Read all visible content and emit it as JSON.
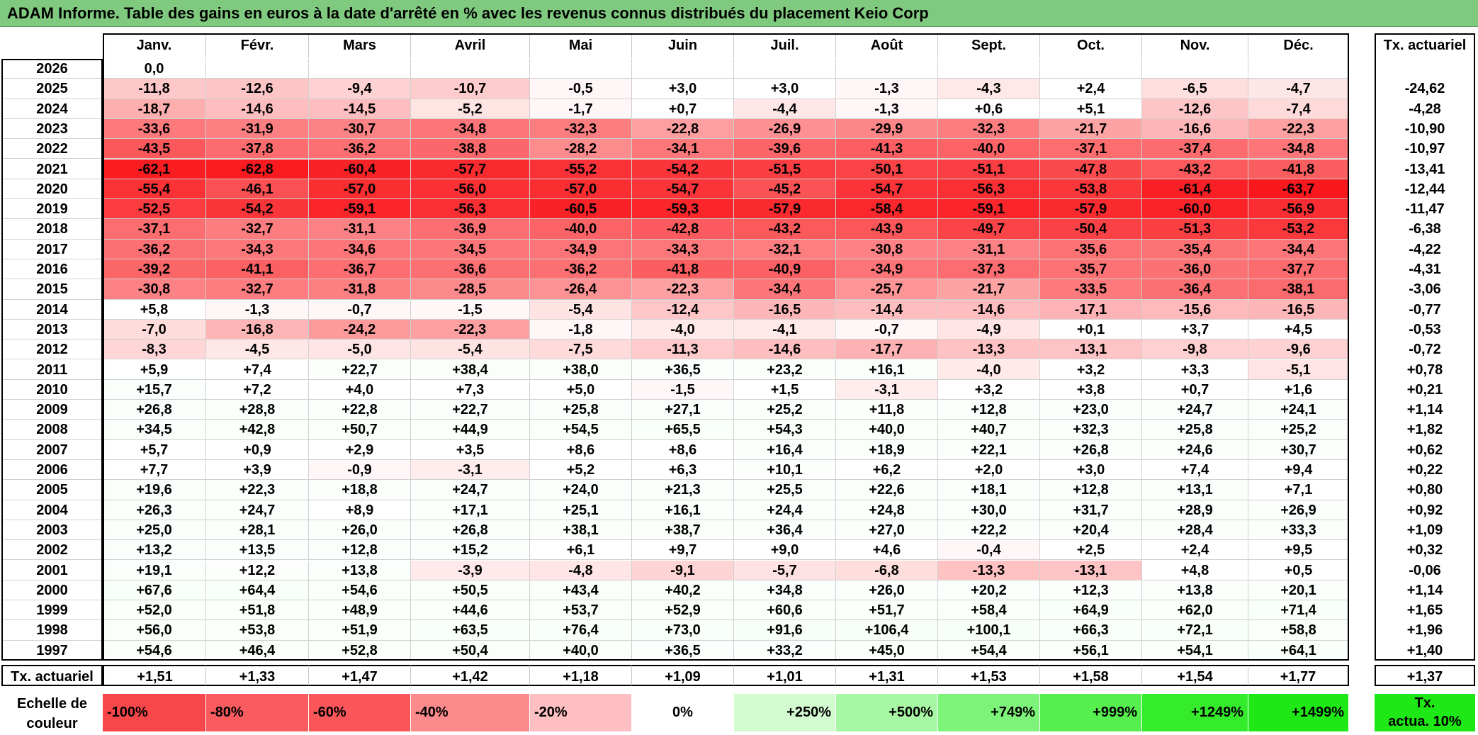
{
  "title": "ADAM Informe. Table des gains en euros à la date d'arrêté en % avec les revenus connus distribués du placement Keio Corp",
  "chart_data": {
    "type": "heatmap",
    "title": "ADAM Informe. Table des gains en euros à la date d'arrêté en % avec les revenus connus distribués du placement Keio Corp",
    "months": [
      "Janv.",
      "Févr.",
      "Mars",
      "Avril",
      "Mai",
      "Juin",
      "Juil.",
      "Août",
      "Sept.",
      "Oct.",
      "Nov.",
      "Déc."
    ],
    "rate_header": "Tx. actuariel",
    "years": [
      "2026",
      "2025",
      "2024",
      "2023",
      "2022",
      "2021",
      "2020",
      "2019",
      "2018",
      "2017",
      "2016",
      "2015",
      "2014",
      "2013",
      "2012",
      "2011",
      "2010",
      "2009",
      "2008",
      "2007",
      "2006",
      "2005",
      "2004",
      "2003",
      "2002",
      "2001",
      "2000",
      "1999",
      "1998",
      "1997"
    ],
    "values": [
      [
        "0,0",
        "",
        "",
        "",
        "",
        "",
        "",
        "",
        "",
        "",
        "",
        ""
      ],
      [
        "-11,8",
        "-12,6",
        "-9,4",
        "-10,7",
        "-0,5",
        "+3,0",
        "+3,0",
        "-1,3",
        "-4,3",
        "+2,4",
        "-6,5",
        "-4,7"
      ],
      [
        "-18,7",
        "-14,6",
        "-14,5",
        "-5,2",
        "-1,7",
        "+0,7",
        "-4,4",
        "-1,3",
        "+0,6",
        "+5,1",
        "-12,6",
        "-7,4"
      ],
      [
        "-33,6",
        "-31,9",
        "-30,7",
        "-34,8",
        "-32,3",
        "-22,8",
        "-26,9",
        "-29,9",
        "-32,3",
        "-21,7",
        "-16,6",
        "-22,3"
      ],
      [
        "-43,5",
        "-37,8",
        "-36,2",
        "-38,8",
        "-28,2",
        "-34,1",
        "-39,6",
        "-41,3",
        "-40,0",
        "-37,1",
        "-37,4",
        "-34,8"
      ],
      [
        "-62,1",
        "-62,8",
        "-60,4",
        "-57,7",
        "-55,2",
        "-54,2",
        "-51,5",
        "-50,1",
        "-51,1",
        "-47,8",
        "-43,2",
        "-41,8"
      ],
      [
        "-55,4",
        "-46,1",
        "-57,0",
        "-56,0",
        "-57,0",
        "-54,7",
        "-45,2",
        "-54,7",
        "-56,3",
        "-53,8",
        "-61,4",
        "-63,7"
      ],
      [
        "-52,5",
        "-54,2",
        "-59,1",
        "-56,3",
        "-60,5",
        "-59,3",
        "-57,9",
        "-58,4",
        "-59,1",
        "-57,9",
        "-60,0",
        "-56,9"
      ],
      [
        "-37,1",
        "-32,7",
        "-31,1",
        "-36,9",
        "-40,0",
        "-42,8",
        "-43,2",
        "-43,9",
        "-49,7",
        "-50,4",
        "-51,3",
        "-53,2"
      ],
      [
        "-36,2",
        "-34,3",
        "-34,6",
        "-34,5",
        "-34,9",
        "-34,3",
        "-32,1",
        "-30,8",
        "-31,1",
        "-35,6",
        "-35,4",
        "-34,4"
      ],
      [
        "-39,2",
        "-41,1",
        "-36,7",
        "-36,6",
        "-36,2",
        "-41,8",
        "-40,9",
        "-34,9",
        "-37,3",
        "-35,7",
        "-36,0",
        "-37,7"
      ],
      [
        "-30,8",
        "-32,7",
        "-31,8",
        "-28,5",
        "-26,4",
        "-22,3",
        "-34,4",
        "-25,7",
        "-21,7",
        "-33,5",
        "-36,4",
        "-38,1"
      ],
      [
        "+5,8",
        "-1,3",
        "-0,7",
        "-1,5",
        "-5,4",
        "-12,4",
        "-16,5",
        "-14,4",
        "-14,6",
        "-17,1",
        "-15,6",
        "-16,5"
      ],
      [
        "-7,0",
        "-16,8",
        "-24,2",
        "-22,3",
        "-1,8",
        "-4,0",
        "-4,1",
        "-0,7",
        "-4,9",
        "+0,1",
        "+3,7",
        "+4,5"
      ],
      [
        "-8,3",
        "-4,5",
        "-5,0",
        "-5,4",
        "-7,5",
        "-11,3",
        "-14,6",
        "-17,7",
        "-13,3",
        "-13,1",
        "-9,8",
        "-9,6"
      ],
      [
        "+5,9",
        "+7,4",
        "+22,7",
        "+38,4",
        "+38,0",
        "+36,5",
        "+23,2",
        "+16,1",
        "-4,0",
        "+3,2",
        "+3,3",
        "-5,1"
      ],
      [
        "+15,7",
        "+7,2",
        "+4,0",
        "+7,3",
        "+5,0",
        "-1,5",
        "+1,5",
        "-3,1",
        "+3,2",
        "+3,8",
        "+0,7",
        "+1,6"
      ],
      [
        "+26,8",
        "+28,8",
        "+22,8",
        "+22,7",
        "+25,8",
        "+27,1",
        "+25,2",
        "+11,8",
        "+12,8",
        "+23,0",
        "+24,7",
        "+24,1"
      ],
      [
        "+34,5",
        "+42,8",
        "+50,7",
        "+44,9",
        "+54,5",
        "+65,5",
        "+54,3",
        "+40,0",
        "+40,7",
        "+32,3",
        "+25,8",
        "+25,2"
      ],
      [
        "+5,7",
        "+0,9",
        "+2,9",
        "+3,5",
        "+8,6",
        "+8,6",
        "+16,4",
        "+18,9",
        "+22,1",
        "+26,8",
        "+24,6",
        "+30,7"
      ],
      [
        "+7,7",
        "+3,9",
        "-0,9",
        "-3,1",
        "+5,2",
        "+6,3",
        "+10,1",
        "+6,2",
        "+2,0",
        "+3,0",
        "+7,4",
        "+9,4"
      ],
      [
        "+19,6",
        "+22,3",
        "+18,8",
        "+24,7",
        "+24,0",
        "+21,3",
        "+25,5",
        "+22,6",
        "+18,1",
        "+12,8",
        "+13,1",
        "+7,1"
      ],
      [
        "+26,3",
        "+24,7",
        "+8,9",
        "+17,1",
        "+25,1",
        "+16,1",
        "+24,4",
        "+24,8",
        "+30,0",
        "+31,7",
        "+28,9",
        "+26,9"
      ],
      [
        "+25,0",
        "+28,1",
        "+26,0",
        "+26,8",
        "+38,1",
        "+38,7",
        "+36,4",
        "+27,0",
        "+22,2",
        "+20,4",
        "+28,4",
        "+33,3"
      ],
      [
        "+13,2",
        "+13,5",
        "+12,8",
        "+15,2",
        "+6,1",
        "+9,7",
        "+9,0",
        "+4,6",
        "-0,4",
        "+2,5",
        "+2,4",
        "+9,5"
      ],
      [
        "+19,1",
        "+12,2",
        "+13,8",
        "-3,9",
        "-4,8",
        "-9,1",
        "-5,7",
        "-6,8",
        "-13,3",
        "-13,1",
        "+4,8",
        "+0,5"
      ],
      [
        "+67,6",
        "+64,4",
        "+54,6",
        "+50,5",
        "+43,4",
        "+40,2",
        "+34,8",
        "+26,0",
        "+20,2",
        "+12,3",
        "+13,8",
        "+20,1"
      ],
      [
        "+52,0",
        "+51,8",
        "+48,9",
        "+44,6",
        "+53,7",
        "+52,9",
        "+60,6",
        "+51,7",
        "+58,4",
        "+64,9",
        "+62,0",
        "+71,4"
      ],
      [
        "+56,0",
        "+53,8",
        "+51,9",
        "+63,5",
        "+76,4",
        "+73,0",
        "+91,6",
        "+106,4",
        "+100,1",
        "+66,3",
        "+72,1",
        "+58,8"
      ],
      [
        "+54,6",
        "+46,4",
        "+52,8",
        "+50,4",
        "+40,0",
        "+36,5",
        "+33,2",
        "+45,0",
        "+54,4",
        "+56,1",
        "+54,1",
        "+64,1"
      ]
    ],
    "rates": [
      "",
      "-24,62",
      "-4,28",
      "-10,90",
      "-10,97",
      "-13,41",
      "-12,44",
      "-11,47",
      "-6,38",
      "-4,22",
      "-4,31",
      "-3,06",
      "-0,77",
      "-0,53",
      "-0,72",
      "+0,78",
      "+0,21",
      "+1,14",
      "+1,82",
      "+0,62",
      "+0,22",
      "+0,80",
      "+0,92",
      "+1,09",
      "+0,32",
      "-0,06",
      "+1,14",
      "+1,65",
      "+1,96",
      "+1,40"
    ],
    "footer": {
      "label": "Tx. actuariel",
      "values": [
        "+1,51",
        "+1,33",
        "+1,47",
        "+1,42",
        "+1,18",
        "+1,09",
        "+1,01",
        "+1,31",
        "+1,53",
        "+1,58",
        "+1,54",
        "+1,77"
      ],
      "rate": "+1,37"
    },
    "scale": {
      "label_line1": "Echelle de",
      "label_line2": "couleur",
      "stops": [
        {
          "text": "-100%",
          "color": "#f8474b",
          "align": "left"
        },
        {
          "text": "-80%",
          "color": "#f95b5f",
          "align": "left"
        },
        {
          "text": "-60%",
          "color": "#fa5659",
          "align": "left"
        },
        {
          "text": "-40%",
          "color": "#fb8a8d",
          "align": "left"
        },
        {
          "text": "-20%",
          "color": "#fdbfc1",
          "align": "left"
        },
        {
          "text": "0%",
          "color": "#ffffff",
          "align": "center"
        },
        {
          "text": "+250%",
          "color": "#d2fbd0",
          "align": "right"
        },
        {
          "text": "+500%",
          "color": "#a7f7a4",
          "align": "right"
        },
        {
          "text": "+749%",
          "color": "#7ef379",
          "align": "right"
        },
        {
          "text": "+999%",
          "color": "#56ef4f",
          "align": "right"
        },
        {
          "text": "+1249%",
          "color": "#35ec2c",
          "align": "right"
        },
        {
          "text": "+1499%",
          "color": "#1ee815",
          "align": "right"
        }
      ],
      "rate_label_line1": "Tx.",
      "rate_label_line2": "actua. 10%",
      "rate_color": "#1ee815"
    }
  }
}
